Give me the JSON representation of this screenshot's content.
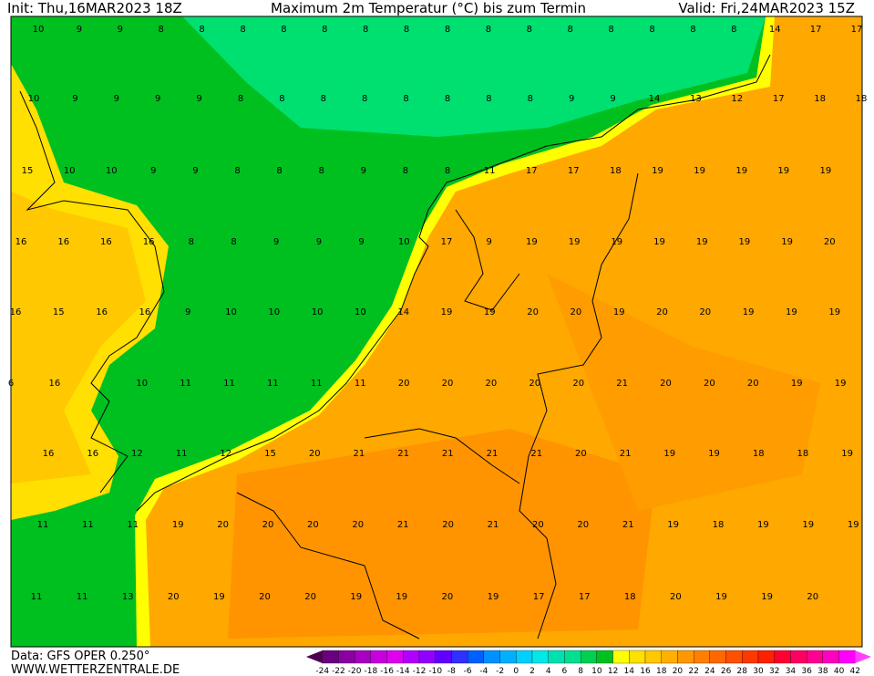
{
  "header": {
    "init": "Init: Thu,16MAR2023 18Z",
    "title": "Maximum 2m Temperatur (°C) bis zum Termin",
    "valid": "Valid: Fri,24MAR2023 15Z"
  },
  "footer": {
    "data": "Data: GFS OPER 0.250°",
    "site": "WWW.WETTERZENTRALE.DE"
  },
  "map": {
    "rows": [
      [
        10,
        9,
        9,
        8,
        8,
        8,
        8,
        8,
        8,
        8,
        8,
        8,
        8,
        8,
        8,
        8,
        8,
        8,
        14,
        17,
        17
      ],
      [
        10,
        9,
        9,
        9,
        9,
        8,
        8,
        8,
        8,
        8,
        8,
        8,
        8,
        9,
        9,
        14,
        13,
        12,
        17,
        18,
        18
      ],
      [
        15,
        10,
        10,
        9,
        9,
        8,
        8,
        8,
        9,
        8,
        8,
        11,
        17,
        17,
        18,
        19,
        19,
        19,
        19,
        19
      ],
      [
        16,
        16,
        16,
        16,
        8,
        8,
        9,
        9,
        9,
        10,
        17,
        9,
        19,
        19,
        19,
        19,
        19,
        19,
        19,
        20
      ],
      [
        16,
        15,
        16,
        16,
        9,
        10,
        10,
        10,
        10,
        14,
        19,
        19,
        20,
        20,
        19,
        20,
        20,
        19,
        19,
        19
      ],
      [
        6,
        16,
        null,
        10,
        11,
        11,
        11,
        11,
        11,
        20,
        20,
        20,
        20,
        20,
        21,
        20,
        20,
        20,
        19,
        19
      ],
      [
        16,
        16,
        12,
        11,
        12,
        15,
        20,
        21,
        21,
        21,
        21,
        21,
        20,
        21,
        19,
        19,
        18,
        18,
        19
      ],
      [
        11,
        11,
        11,
        19,
        20,
        20,
        20,
        20,
        21,
        20,
        21,
        20,
        20,
        21,
        19,
        18,
        19,
        19,
        19
      ],
      [
        11,
        11,
        13,
        20,
        19,
        20,
        20,
        19,
        19,
        20,
        19,
        17,
        17,
        18,
        20,
        19,
        19,
        20
      ]
    ]
  },
  "colorbar": {
    "labels": [
      -24,
      -22,
      -20,
      -18,
      -16,
      -14,
      -12,
      -10,
      -8,
      -6,
      -4,
      -2,
      0,
      2,
      4,
      6,
      8,
      10,
      12,
      14,
      16,
      18,
      20,
      22,
      24,
      26,
      28,
      30,
      32,
      34,
      36,
      38,
      40,
      42
    ],
    "colors": [
      "#4b0050",
      "#6a0080",
      "#8a00a0",
      "#a800c0",
      "#c800e0",
      "#e000f0",
      "#b000ff",
      "#9000ff",
      "#6000ff",
      "#3030ff",
      "#0060ff",
      "#0090ff",
      "#00b0ff",
      "#00d0ff",
      "#00e8e8",
      "#00e0b0",
      "#00e090",
      "#00d050",
      "#00c020",
      "#ffff00",
      "#ffe000",
      "#ffc800",
      "#ffb000",
      "#ff9800",
      "#ff8000",
      "#ff6800",
      "#ff5000",
      "#ff3800",
      "#ff2000",
      "#ff0030",
      "#ff0060",
      "#ff0090",
      "#ff00c0",
      "#ff00ff",
      "#ff40ff"
    ]
  }
}
